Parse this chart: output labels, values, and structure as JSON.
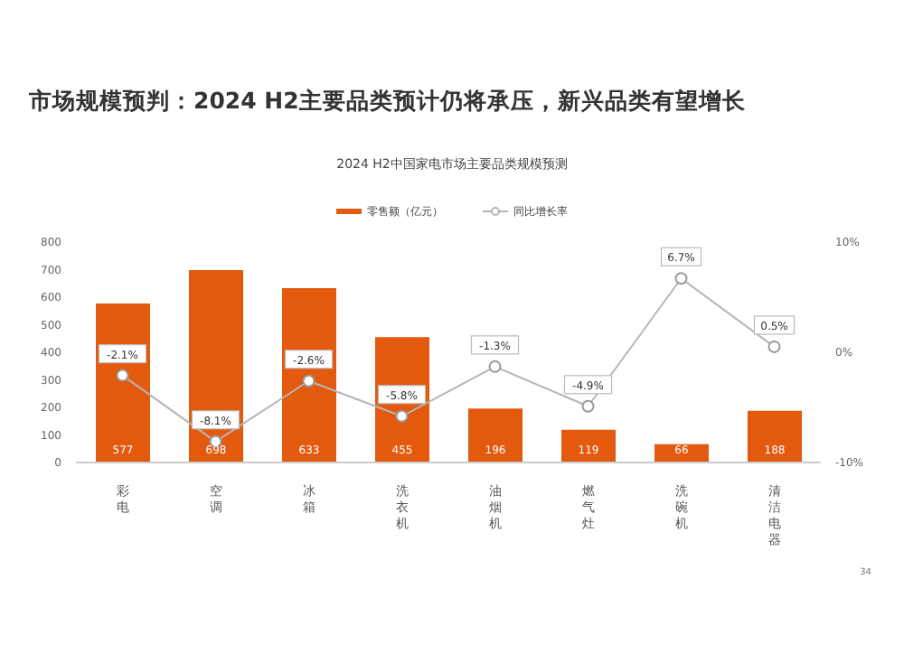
{
  "chart_data": {
    "type": "bar",
    "title": "市场规模预判：2024 H2主要品类预计仍将承压，新兴品类有望增长",
    "subtitle": "2024 H2中国家电市场主要品类规模预测",
    "categories": [
      "彩电",
      "空调",
      "冰箱",
      "洗衣机",
      "油烟机",
      "燃气灶",
      "洗碗机",
      "清洁电器"
    ],
    "series": [
      {
        "name": "零售额（亿元）",
        "color": "#e35a0f",
        "values": [
          577,
          698,
          633,
          455,
          196,
          119,
          66,
          188
        ],
        "value_labels": [
          "577",
          "698",
          "633",
          "455",
          "196",
          "119",
          "66",
          "188"
        ]
      },
      {
        "name": "同比增长率",
        "type": "line",
        "axis": "y2",
        "color": "#b5b5b5",
        "marker": "circle",
        "values": [
          -2.1,
          -8.1,
          -2.6,
          -5.8,
          -1.3,
          -4.9,
          6.7,
          0.5
        ],
        "value_labels": [
          "-2.1%",
          "-8.1%",
          "-2.6%",
          "-5.8%",
          "-1.3%",
          "-4.9%",
          "6.7%",
          "0.5%"
        ]
      }
    ],
    "ylim": [
      0,
      800
    ],
    "yticks": [
      0,
      100,
      200,
      300,
      400,
      500,
      600,
      700,
      800
    ],
    "y2lim": [
      -10,
      10
    ],
    "y2ticks": [
      {
        "value": -10,
        "label": "-10%"
      },
      {
        "value": 0,
        "label": "0%"
      },
      {
        "value": 10,
        "label": "10%"
      }
    ],
    "legend": "top",
    "annotations": [
      "34"
    ]
  }
}
